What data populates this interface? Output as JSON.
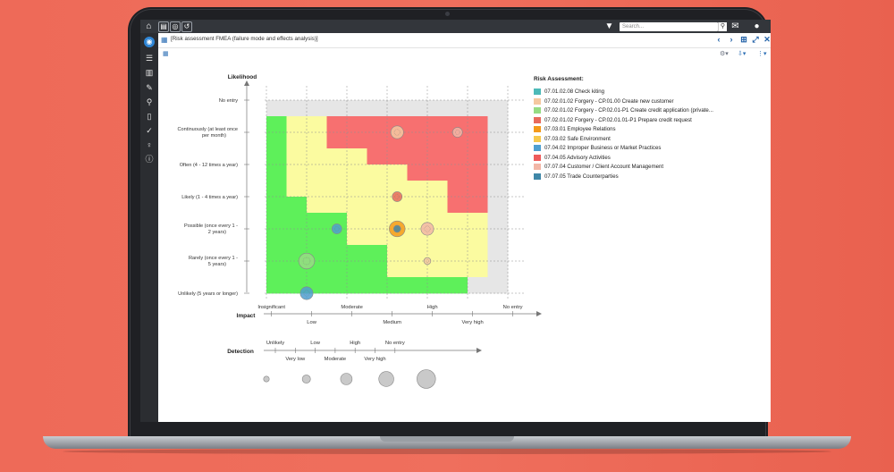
{
  "window": {
    "title": "[Risk assessment FMEA (failure mode and effects analysis)]",
    "search_placeholder": "Search..."
  },
  "icons": {
    "topbar_left": [
      "home-icon",
      "document-icon",
      "globe-icon",
      "history-icon"
    ],
    "topbar_right": [
      "filter-icon",
      "search-icon",
      "chat-icon",
      "user-icon"
    ],
    "sidebar": [
      "eye-icon",
      "search-list-icon",
      "book-icon",
      "pencil-icon",
      "magnifier-icon",
      "page-icon",
      "check-icon",
      "lightbulb-icon",
      "info-icon"
    ],
    "title_actions": [
      "chevron-left-icon",
      "chevron-right-icon",
      "hierarchy-icon",
      "expand-icon",
      "close-icon"
    ]
  },
  "chart_data": {
    "type": "heatmap",
    "y_axis": {
      "label": "Likelihood",
      "ticks": [
        "No entry",
        "Continuously (at least once per month)",
        "Often (4 - 12 times a year)",
        "Likely (1 - 4 times a year)",
        "Possible (once every 1 - 2 years)",
        "Rarely (once every 1 - 5 years)",
        "Unlikely (5 years or longer)"
      ]
    },
    "x_axis": {
      "label": "Impact",
      "ticks_top": [
        "Insignificant",
        "Moderate",
        "High",
        "No entry"
      ],
      "ticks_bottom": [
        "Low",
        "Medium",
        "Very high"
      ]
    },
    "detection": {
      "label": "Detection",
      "ticks_top": [
        "Unlikely",
        "Low",
        "High",
        "No entry"
      ],
      "ticks_bottom": [
        "Very low",
        "Moderate",
        "Very high"
      ]
    },
    "colors": {
      "green": "#5ef05a",
      "yellow": "#fbfba0",
      "red": "#f77070",
      "grey": "#e6e6e6"
    },
    "legend_title": "Risk Assessment:",
    "series": [
      {
        "name": "07.01.02.08 Check kiting",
        "color": "#4dbab8"
      },
      {
        "name": "07.02.01.02 Forgery - CP.01.00 Create new customer",
        "color": "#f5c8a0"
      },
      {
        "name": "07.02.01.02 Forgery - CP.02.01-P1 Create credit application (private...",
        "color": "#96dc84"
      },
      {
        "name": "07.02.01.02 Forgery - CP.02.01.01-P1 Prepare credit request",
        "color": "#e86a5c"
      },
      {
        "name": "07.03.01 Employee Relations",
        "color": "#f39a1a"
      },
      {
        "name": "07.03.02 Safe Environment",
        "color": "#f6c94e"
      },
      {
        "name": "07.04.02 Improper Business or Market Practices",
        "color": "#4f9fd0"
      },
      {
        "name": "07.04.05 Advisory Activities",
        "color": "#ee5b5b"
      },
      {
        "name": "07.07.04 Customer / Client Account Management",
        "color": "#f2b6a6"
      },
      {
        "name": "07.07.05 Trade Counterparties",
        "color": "#3f87a8"
      }
    ],
    "points": [
      {
        "impact": 6.5,
        "likelihood": 1,
        "detection": 3,
        "color": "#f5c8a0"
      },
      {
        "impact": 9.5,
        "likelihood": 1,
        "detection": 2,
        "color": "#f2b6a6"
      },
      {
        "impact": 6.5,
        "likelihood": 3,
        "detection": 2,
        "color": "#e86a5c"
      },
      {
        "impact": 3.5,
        "likelihood": 4,
        "detection": 2,
        "color": "#4f9fd0"
      },
      {
        "impact": 6.5,
        "likelihood": 4,
        "detection": 4,
        "color": "#f39a1a"
      },
      {
        "impact": 6.5,
        "likelihood": 4,
        "detection": 1,
        "color": "#3f87a8"
      },
      {
        "impact": 8,
        "likelihood": 4,
        "detection": 3,
        "color": "#f2b6a6"
      },
      {
        "impact": 2,
        "likelihood": 5,
        "detection": 4,
        "color": "#96dc84"
      },
      {
        "impact": 8,
        "likelihood": 5,
        "detection": 1,
        "color": "#f5c8a0"
      },
      {
        "impact": 2,
        "likelihood": 6,
        "detection": 3,
        "color": "#4f9fd0"
      }
    ]
  }
}
